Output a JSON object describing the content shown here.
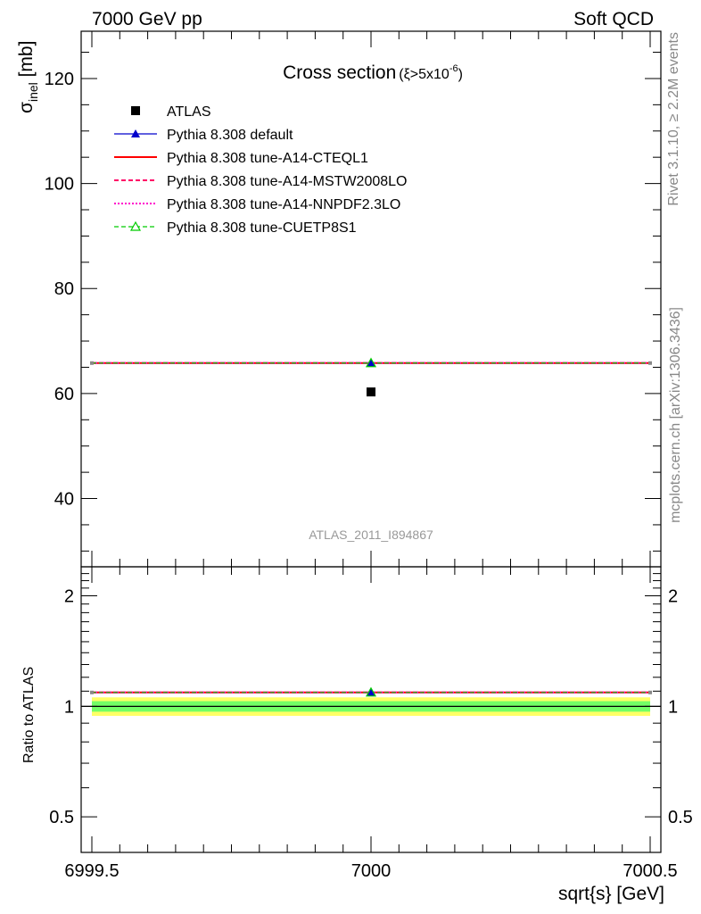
{
  "header": {
    "left": "7000 GeV pp",
    "right": "Soft QCD"
  },
  "side_text": {
    "rivet": "Rivet 3.1.10, ≥ 2.2M events",
    "mcplots": "mcplots.cern.ch [arXiv:1306.3436]"
  },
  "analysis_id": "ATLAS_2011_I894867",
  "colors": {
    "data": "#000000",
    "default": "#0000cc",
    "cteql1": "#ff0000",
    "mstw": "#ff0066",
    "nnpdf": "#ff00cc",
    "cuetp8s1": "#00cc00",
    "band_inner": "#00ff66",
    "band_outer": "#ffff66"
  },
  "chart_data": [
    {
      "type": "scatter",
      "panel": "main",
      "title": "Cross section",
      "title_sub": "(ξ>5x10⁻⁶)",
      "title_sub_parts": {
        "pre": "(ξ>5x10",
        "sup": "-6",
        "post": ")"
      },
      "ylabel": "σ_inel [mb]",
      "ylabel_parts": {
        "sigma": "σ",
        "sub": "inel",
        "unit": " [mb]"
      },
      "xlim": [
        6999.5,
        7000.5
      ],
      "ylim": [
        27,
        129
      ],
      "y_ticks": [
        40,
        60,
        80,
        100,
        120
      ],
      "y_tick_labels": [
        "40",
        "60",
        "80",
        "100",
        "120"
      ],
      "legend_position": "top-left",
      "legend": [
        {
          "key": "data",
          "label": "ATLAS"
        },
        {
          "key": "default",
          "label": "Pythia 8.308 default"
        },
        {
          "key": "cteql1",
          "label": "Pythia 8.308 tune-A14-CTEQL1"
        },
        {
          "key": "mstw",
          "label": "Pythia 8.308 tune-A14-MSTW2008LO"
        },
        {
          "key": "nnpdf",
          "label": "Pythia 8.308 tune-A14-NNPDF2.3LO"
        },
        {
          "key": "cuetp8s1",
          "label": "Pythia 8.308 tune-CUETP8S1"
        }
      ],
      "series": [
        {
          "key": "data",
          "x": [
            7000
          ],
          "y": [
            60.3
          ],
          "yerr": [
            0.5
          ]
        },
        {
          "key": "default",
          "x": [
            7000
          ],
          "y": [
            65.8
          ]
        },
        {
          "key": "cteql1",
          "x": [
            7000
          ],
          "y": [
            65.8
          ]
        },
        {
          "key": "mstw",
          "x": [
            7000
          ],
          "y": [
            65.8
          ]
        },
        {
          "key": "nnpdf",
          "x": [
            7000
          ],
          "y": [
            65.8
          ]
        },
        {
          "key": "cuetp8s1",
          "x": [
            7000
          ],
          "y": [
            65.8
          ]
        }
      ]
    },
    {
      "type": "line",
      "panel": "ratio",
      "ylabel": "Ratio to ATLAS",
      "xlabel": "sqrt{s} [GeV]",
      "xlim": [
        6999.5,
        7000.5
      ],
      "ylim": [
        0.4,
        2.4
      ],
      "y_scale": "log",
      "x_ticks": [
        6999.5,
        7000,
        7000.5
      ],
      "x_tick_labels": [
        "6999.5",
        "7000",
        "7000.5"
      ],
      "y_ticks": [
        0.5,
        1,
        2
      ],
      "y_tick_labels": [
        "0.5",
        "1",
        "2"
      ],
      "band_inner": [
        0.967,
        1.033
      ],
      "band_outer": [
        0.942,
        1.058
      ],
      "series": [
        {
          "key": "default",
          "x": [
            7000
          ],
          "y": [
            1.091
          ]
        },
        {
          "key": "cteql1",
          "x": [
            7000
          ],
          "y": [
            1.091
          ]
        },
        {
          "key": "mstw",
          "x": [
            7000
          ],
          "y": [
            1.091
          ]
        },
        {
          "key": "nnpdf",
          "x": [
            7000
          ],
          "y": [
            1.091
          ]
        },
        {
          "key": "cuetp8s1",
          "x": [
            7000
          ],
          "y": [
            1.091
          ]
        }
      ]
    }
  ]
}
